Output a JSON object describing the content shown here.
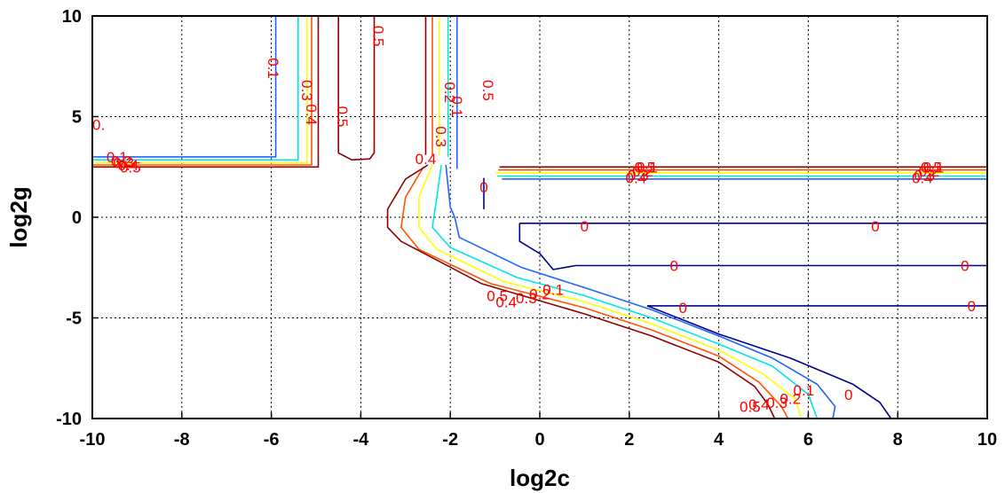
{
  "chart_data": {
    "type": "contour",
    "xlabel": "log2c",
    "ylabel": "log2g",
    "xlim": [
      -10,
      10
    ],
    "ylim": [
      -10,
      10
    ],
    "x_ticks": [
      "-10",
      "-8",
      "-6",
      "-4",
      "-2",
      "0",
      "2",
      "4",
      "6",
      "8",
      "10"
    ],
    "y_ticks": [
      "10",
      "5",
      "0",
      "-5",
      "-10"
    ],
    "grid": true,
    "levels": [
      {
        "level": "0",
        "color": "#00008b",
        "segments": [
          [
            [
              -0.45,
              -0.3
            ],
            [
              2.0,
              -0.3
            ],
            [
              5.0,
              -0.3
            ],
            [
              10.0,
              -0.3
            ]
          ],
          [
            [
              -0.45,
              -0.3
            ],
            [
              -0.45,
              -1.2
            ],
            [
              0.0,
              -1.8
            ],
            [
              0.3,
              -2.6
            ],
            [
              0.8,
              -2.4
            ],
            [
              10.0,
              -2.4
            ]
          ],
          [
            [
              2.4,
              -4.4
            ],
            [
              3.5,
              -4.4
            ],
            [
              10.0,
              -4.4
            ]
          ],
          [
            [
              2.4,
              -4.4
            ],
            [
              4.0,
              -5.8
            ],
            [
              5.6,
              -7.0
            ],
            [
              7.0,
              -8.3
            ],
            [
              7.6,
              -9.2
            ],
            [
              7.85,
              -10.0
            ]
          ],
          [
            [
              -1.25,
              1.95
            ],
            [
              -1.25,
              0.4
            ]
          ]
        ],
        "labels": [
          [
            1.0,
            -0.45
          ],
          [
            7.5,
            -0.45
          ],
          [
            3.0,
            -2.4
          ],
          [
            9.5,
            -2.4
          ],
          [
            3.2,
            -4.5
          ],
          [
            9.65,
            -4.4
          ],
          [
            6.9,
            -8.8
          ],
          [
            -1.25,
            1.5
          ]
        ]
      },
      {
        "level": "0.1",
        "color": "#1e64ff",
        "segments": [
          [
            [
              -10.0,
              3.0
            ],
            [
              -5.9,
              3.0
            ],
            [
              -5.9,
              10.0
            ]
          ],
          [
            [
              -0.85,
              1.9
            ],
            [
              -0.85,
              1.9
            ],
            [
              10.0,
              1.9
            ]
          ],
          [
            [
              -1.85,
              10.0
            ],
            [
              -1.85,
              4.0
            ],
            [
              -1.85,
              2.4
            ]
          ],
          [
            [
              -2.1,
              2.6
            ],
            [
              -2.0,
              0.5
            ],
            [
              -1.9,
              0.0
            ],
            [
              -1.8,
              -1.0
            ],
            [
              -0.4,
              -2.5
            ],
            [
              1.0,
              -3.5
            ],
            [
              2.5,
              -4.6
            ],
            [
              4.0,
              -5.9
            ],
            [
              5.2,
              -7.0
            ],
            [
              6.2,
              -8.3
            ],
            [
              6.6,
              -9.4
            ],
            [
              6.55,
              -10.0
            ]
          ]
        ],
        "labels": [
          [
            -5.95,
            7.4
          ],
          [
            -9.45,
            3.0
          ],
          [
            2.4,
            2.5
          ],
          [
            8.8,
            2.5
          ],
          [
            -1.85,
            5.5
          ],
          [
            0.3,
            -3.6
          ],
          [
            5.9,
            -8.6
          ]
        ]
      },
      {
        "level": "0.2",
        "color": "#00e5e5",
        "segments": [
          [
            [
              -10.0,
              2.85
            ],
            [
              -5.4,
              2.85
            ],
            [
              -5.4,
              10.0
            ]
          ],
          [
            [
              -0.95,
              2.05
            ],
            [
              10.0,
              2.05
            ]
          ],
          [
            [
              -2.05,
              10.0
            ],
            [
              -2.05,
              3.0
            ]
          ],
          [
            [
              -2.2,
              2.6
            ],
            [
              -2.3,
              1.0
            ],
            [
              -2.4,
              -0.5
            ],
            [
              -2.0,
              -1.5
            ],
            [
              -0.5,
              -3.0
            ],
            [
              1.0,
              -3.9
            ],
            [
              2.5,
              -5.0
            ],
            [
              4.0,
              -6.3
            ],
            [
              5.2,
              -7.4
            ],
            [
              6.0,
              -8.8
            ],
            [
              6.2,
              -10.0
            ]
          ]
        ],
        "labels": [
          [
            -9.35,
            2.8
          ],
          [
            2.3,
            2.3
          ],
          [
            8.7,
            2.3
          ],
          [
            -2.0,
            6.2
          ],
          [
            0.0,
            -3.8
          ],
          [
            5.6,
            -9.0
          ]
        ]
      },
      {
        "level": "0.3",
        "color": "#ffff00",
        "segments": [
          [
            [
              -10.0,
              2.7
            ],
            [
              -5.2,
              2.7
            ],
            [
              -5.2,
              10.0
            ]
          ],
          [
            [
              -0.98,
              2.2
            ],
            [
              10.0,
              2.2
            ]
          ],
          [
            [
              -2.25,
              10.0
            ],
            [
              -2.25,
              3.1
            ]
          ],
          [
            [
              -2.4,
              2.6
            ],
            [
              -2.7,
              1.0
            ],
            [
              -2.7,
              -0.5
            ],
            [
              -2.3,
              -1.6
            ],
            [
              -0.8,
              -3.2
            ],
            [
              1.0,
              -4.2
            ],
            [
              2.5,
              -5.3
            ],
            [
              4.0,
              -6.6
            ],
            [
              5.0,
              -7.8
            ],
            [
              5.7,
              -9.0
            ],
            [
              5.85,
              -10.0
            ]
          ]
        ],
        "labels": [
          [
            -5.2,
            6.3
          ],
          [
            -9.3,
            2.7
          ],
          [
            2.2,
            2.1
          ],
          [
            8.6,
            2.1
          ],
          [
            -2.2,
            4.0
          ],
          [
            -0.3,
            -4.0
          ],
          [
            5.3,
            -9.2
          ]
        ]
      },
      {
        "level": "0.4",
        "color": "#ff5500",
        "segments": [
          [
            [
              -10.0,
              2.6
            ],
            [
              -5.1,
              2.6
            ],
            [
              -5.1,
              10.0
            ]
          ],
          [
            [
              -0.93,
              2.35
            ],
            [
              10.0,
              2.35
            ]
          ],
          [
            [
              -2.4,
              10.0
            ],
            [
              -2.4,
              3.1
            ]
          ],
          [
            [
              -2.6,
              2.5
            ],
            [
              -3.0,
              1.0
            ],
            [
              -3.1,
              -0.5
            ],
            [
              -2.7,
              -1.6
            ],
            [
              -1.1,
              -3.3
            ],
            [
              1.0,
              -4.5
            ],
            [
              2.5,
              -5.6
            ],
            [
              4.0,
              -6.9
            ],
            [
              4.9,
              -8.2
            ],
            [
              5.4,
              -9.4
            ],
            [
              5.55,
              -10.0
            ]
          ]
        ],
        "labels": [
          [
            -5.1,
            5.1
          ],
          [
            -9.2,
            2.6
          ],
          [
            2.15,
            1.95
          ],
          [
            8.55,
            1.95
          ],
          [
            -2.55,
            2.9
          ],
          [
            -0.75,
            -4.2
          ],
          [
            4.9,
            -9.3
          ]
        ]
      },
      {
        "level": "0.5",
        "color": "#8b0000",
        "segments": [
          [
            [
              -10.0,
              2.5
            ],
            [
              -4.95,
              2.5
            ],
            [
              -4.95,
              10.0
            ]
          ],
          [
            [
              -0.9,
              2.5
            ],
            [
              10.0,
              2.5
            ]
          ],
          [
            [
              -2.55,
              10.0
            ],
            [
              -2.55,
              3.1
            ]
          ],
          [
            [
              -4.5,
              10.0
            ],
            [
              -4.5,
              3.2
            ],
            [
              -4.2,
              2.85
            ],
            [
              -3.8,
              2.9
            ],
            [
              -3.7,
              3.2
            ],
            [
              -3.7,
              10.0
            ]
          ],
          [
            [
              -2.5,
              2.6
            ],
            [
              -3.0,
              1.9
            ],
            [
              -3.4,
              0.4
            ],
            [
              -3.4,
              -0.5
            ],
            [
              -3.1,
              -1.2
            ],
            [
              -1.3,
              -3.3
            ],
            [
              1.0,
              -4.8
            ],
            [
              2.5,
              -5.9
            ],
            [
              4.0,
              -7.2
            ],
            [
              4.8,
              -8.4
            ],
            [
              5.1,
              -9.3
            ],
            [
              5.25,
              -10.0
            ]
          ]
        ],
        "labels": [
          [
            -3.6,
            9.0
          ],
          [
            -4.4,
            5.0
          ],
          [
            -1.15,
            6.3
          ],
          [
            -9.15,
            2.5
          ],
          [
            2.35,
            2.5
          ],
          [
            8.75,
            2.5
          ],
          [
            -0.95,
            -3.9
          ],
          [
            4.7,
            -9.4
          ]
        ]
      }
    ],
    "edge_labels": [
      {
        "text": "0.",
        "x": -10.0,
        "y": 4.6
      }
    ]
  }
}
